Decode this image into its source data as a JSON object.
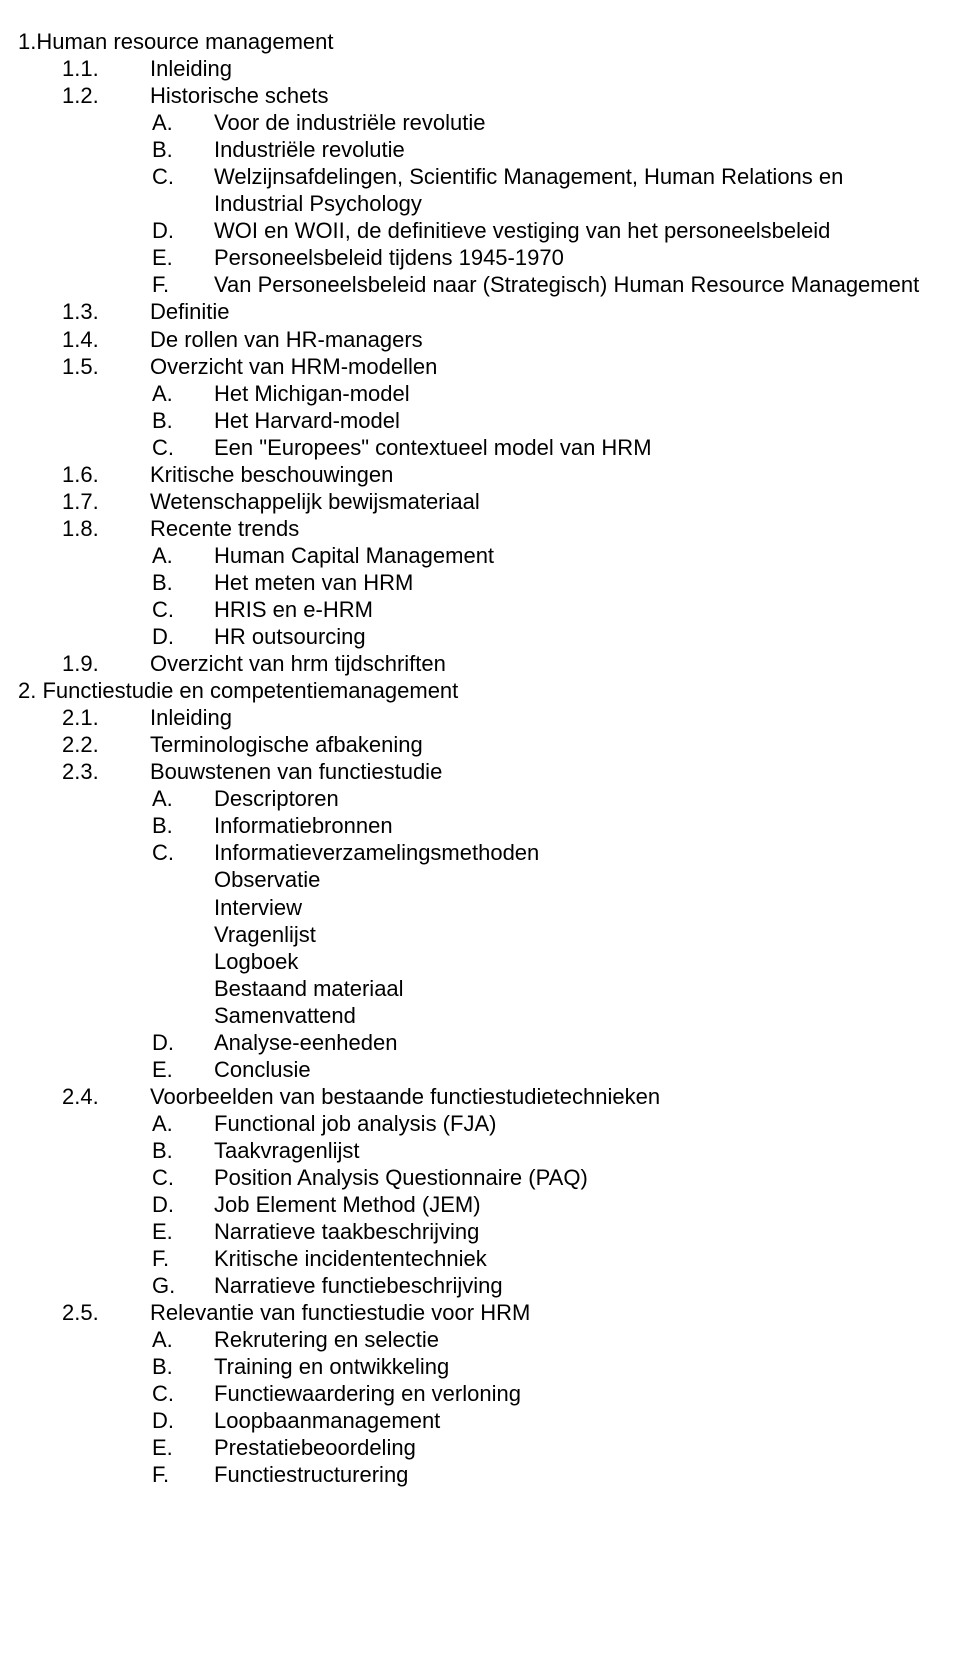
{
  "text_color": "#000000",
  "background_color": "#ffffff",
  "font_size_pt": 16,
  "lines": [
    {
      "cls": "lv0",
      "label": "1.",
      "gap": "",
      "text": "Human resource management"
    },
    {
      "cls": "lv1",
      "label": "1.1.",
      "text": "Inleiding"
    },
    {
      "cls": "lv1",
      "label": "1.2.",
      "text": "Historische schets"
    },
    {
      "cls": "lv2",
      "label": "A.",
      "text": "Voor de industriële revolutie"
    },
    {
      "cls": "lv2",
      "label": "B.",
      "text": "Industriële revolutie"
    },
    {
      "cls": "lv2",
      "label": "C.",
      "text": "Welzijnsafdelingen, Scientific Management, Human Relations en"
    },
    {
      "cls": "lv2",
      "label": "",
      "text": "Industrial Psychology"
    },
    {
      "cls": "lv2",
      "label": "D.",
      "text": "WOI en WOII, de definitieve vestiging van het personeelsbeleid"
    },
    {
      "cls": "lv2",
      "label": "E.",
      "text": "Personeelsbeleid tijdens 1945-1970"
    },
    {
      "cls": "lv2",
      "label": "F.",
      "text": "Van Personeelsbeleid naar (Strategisch) Human Resource Management"
    },
    {
      "cls": "lv1",
      "label": "1.3.",
      "text": "Definitie"
    },
    {
      "cls": "lv1",
      "label": "1.4.",
      "text": "De rollen van HR-managers"
    },
    {
      "cls": "lv1",
      "label": "1.5.",
      "text": "Overzicht van HRM-modellen"
    },
    {
      "cls": "lv2",
      "label": "A.",
      "text": "Het Michigan-model"
    },
    {
      "cls": "lv2",
      "label": "B.",
      "text": "Het Harvard-model"
    },
    {
      "cls": "lv2",
      "label": "C.",
      "text": "Een \"Europees\" contextueel model van HRM"
    },
    {
      "cls": "lv1",
      "label": "1.6.",
      "text": "Kritische beschouwingen"
    },
    {
      "cls": "lv1",
      "label": "1.7.",
      "text": "Wetenschappelijk bewijsmateriaal"
    },
    {
      "cls": "lv1",
      "label": "1.8.",
      "text": "Recente trends"
    },
    {
      "cls": "lv2",
      "label": "A.",
      "text": "Human Capital Management"
    },
    {
      "cls": "lv2",
      "label": "B.",
      "text": "Het meten van HRM"
    },
    {
      "cls": "lv2",
      "label": "C.",
      "text": "HRIS en e-HRM"
    },
    {
      "cls": "lv2",
      "label": "D.",
      "text": "HR outsourcing"
    },
    {
      "cls": "lv1",
      "label": "1.9.",
      "text": "Overzicht van hrm tijdschriften"
    },
    {
      "cls": "lv0",
      "label": "2. ",
      "gap": "",
      "text": "Functiestudie en competentiemanagement"
    },
    {
      "cls": "lv1",
      "label": "2.1.",
      "text": "Inleiding"
    },
    {
      "cls": "lv1",
      "label": "2.2.",
      "text": "Terminologische afbakening"
    },
    {
      "cls": "lv1",
      "label": "2.3.",
      "text": "Bouwstenen van functiestudie"
    },
    {
      "cls": "lv2",
      "label": "A.",
      "text": "Descriptoren"
    },
    {
      "cls": "lv2",
      "label": "B.",
      "text": "Informatiebronnen"
    },
    {
      "cls": "lv2",
      "label": "C.",
      "text": "Informatieverzamelingsmethoden"
    },
    {
      "cls": "lv2",
      "label": "",
      "text": "Observatie"
    },
    {
      "cls": "lv2",
      "label": "",
      "text": "Interview"
    },
    {
      "cls": "lv2",
      "label": "",
      "text": "Vragenlijst"
    },
    {
      "cls": "lv2",
      "label": "",
      "text": "Logboek"
    },
    {
      "cls": "lv2",
      "label": "",
      "text": "Bestaand materiaal"
    },
    {
      "cls": "lv2",
      "label": "",
      "text": "Samenvattend"
    },
    {
      "cls": "lv2",
      "label": "D.",
      "text": "Analyse-eenheden"
    },
    {
      "cls": "lv2",
      "label": "E.",
      "text": "Conclusie"
    },
    {
      "cls": "lv1",
      "label": "2.4.",
      "text": "Voorbeelden van bestaande functiestudietechnieken"
    },
    {
      "cls": "lv2",
      "label": "A.",
      "text": "Functional job analysis (FJA)"
    },
    {
      "cls": "lv2",
      "label": "B.",
      "text": "Taakvragenlijst"
    },
    {
      "cls": "lv2",
      "label": "C.",
      "text": "Position Analysis Questionnaire (PAQ)"
    },
    {
      "cls": "lv2",
      "label": "D.",
      "text": "Job Element Method (JEM)"
    },
    {
      "cls": "lv2",
      "label": "E.",
      "text": "Narratieve taakbeschrijving"
    },
    {
      "cls": "lv2",
      "label": "F.",
      "text": "Kritische incidententechniek"
    },
    {
      "cls": "lv2",
      "label": "G.",
      "text": "Narratieve functiebeschrijving"
    },
    {
      "cls": "lv1",
      "label": "2.5.",
      "text": "Relevantie van functiestudie voor HRM"
    },
    {
      "cls": "lv2",
      "label": "A.",
      "text": "Rekrutering en selectie"
    },
    {
      "cls": "lv2",
      "label": "B.",
      "text": "Training en ontwikkeling"
    },
    {
      "cls": "lv2",
      "label": "C.",
      "text": "Functiewaardering en verloning"
    },
    {
      "cls": "lv2",
      "label": "D.",
      "text": "Loopbaanmanagement"
    },
    {
      "cls": "lv2",
      "label": "E.",
      "text": "Prestatiebeoordeling"
    },
    {
      "cls": "lv2",
      "label": "F.",
      "text": "Functiestructurering"
    }
  ]
}
